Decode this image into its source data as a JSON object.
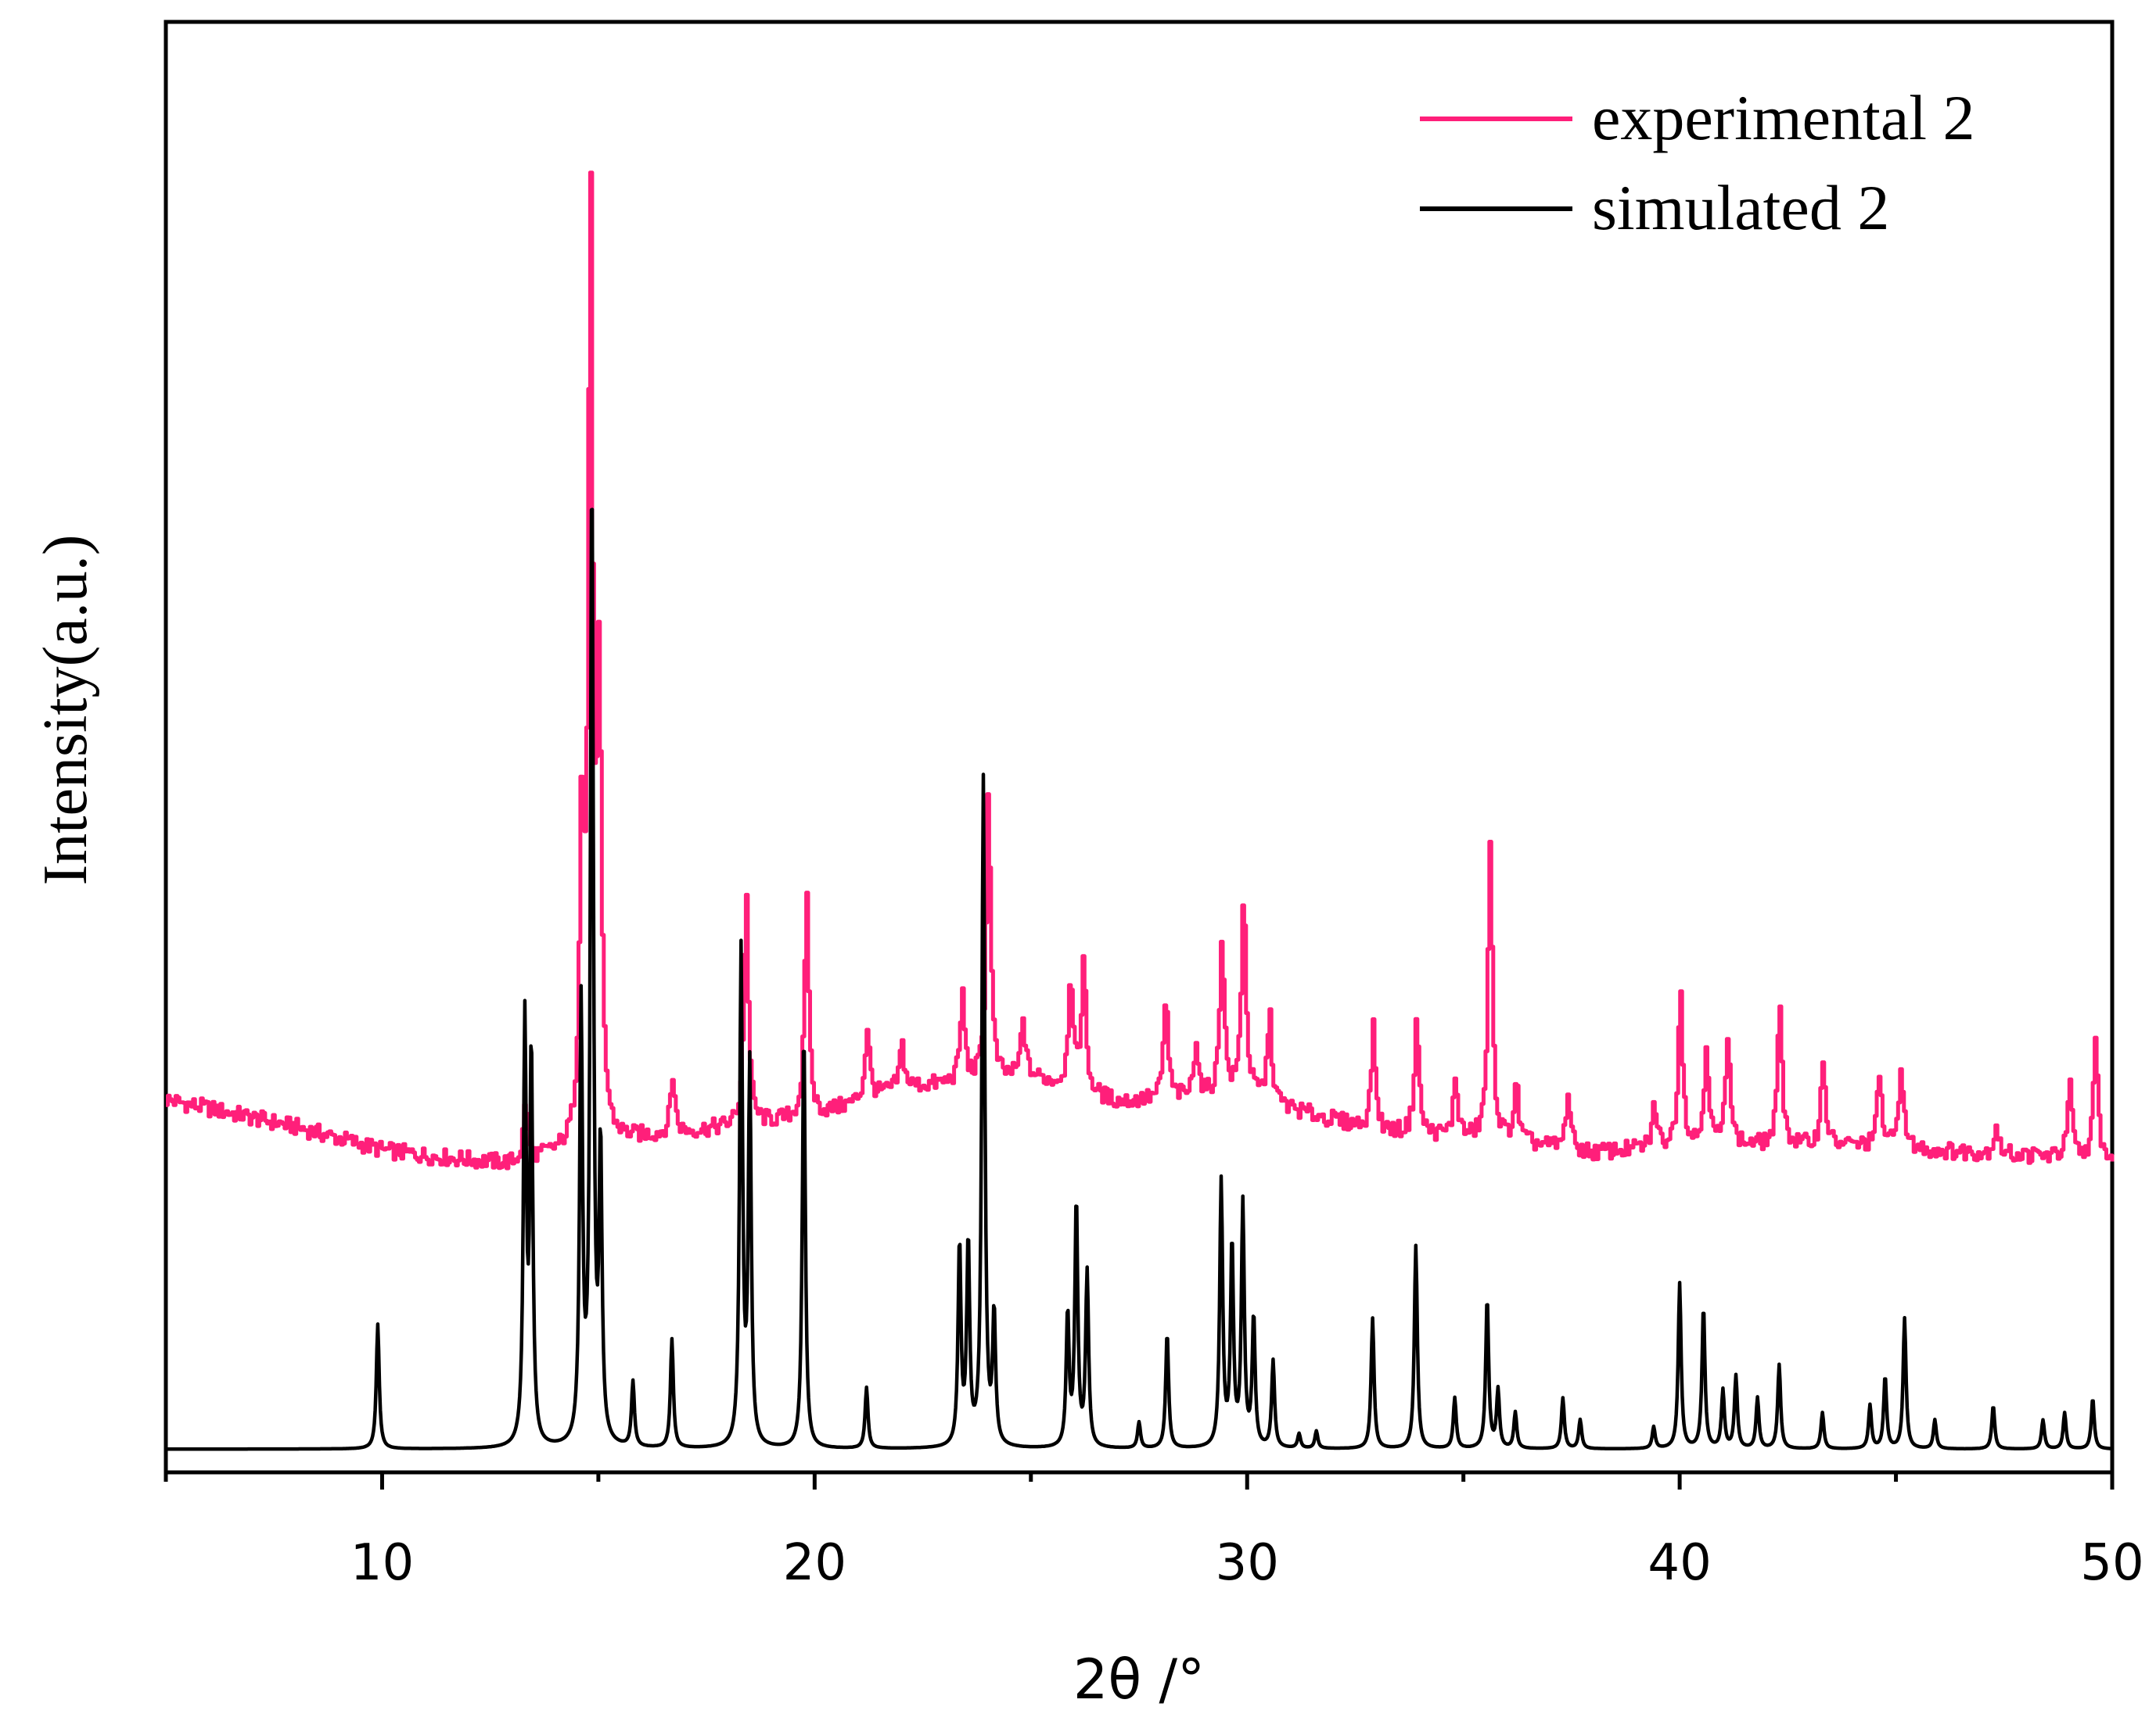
{
  "chart_data": {
    "type": "line",
    "title": "",
    "xlabel": "2θ /°",
    "ylabel": "Intensity(a.u.)",
    "xlim": [
      5,
      50
    ],
    "ylim": [
      0,
      1
    ],
    "x_ticks": [
      10,
      20,
      30,
      40,
      50
    ],
    "x_tick_labels": [
      "10",
      "20",
      "30",
      "40",
      "50"
    ],
    "y_ticks_shown": false,
    "grid": false,
    "legend_position": "top-right",
    "series": [
      {
        "name": "experimental 2",
        "color": "#ff1f7a",
        "baseline": [
          [
            5,
            0.257
          ],
          [
            8,
            0.238
          ],
          [
            10,
            0.222
          ],
          [
            11,
            0.218
          ],
          [
            13,
            0.212
          ],
          [
            16,
            0.23
          ],
          [
            20,
            0.245
          ],
          [
            22,
            0.265
          ],
          [
            25,
            0.272
          ],
          [
            27,
            0.255
          ],
          [
            30,
            0.26
          ],
          [
            31,
            0.25
          ],
          [
            33,
            0.235
          ],
          [
            36,
            0.228
          ],
          [
            38,
            0.22
          ],
          [
            40,
            0.225
          ],
          [
            44,
            0.225
          ],
          [
            47,
            0.22
          ],
          [
            50,
            0.215
          ]
        ],
        "peaks": [
          [
            13.3,
            0.04
          ],
          [
            14.6,
            0.22
          ],
          [
            14.8,
            0.64
          ],
          [
            15.0,
            0.3
          ],
          [
            16.7,
            0.04
          ],
          [
            18.4,
            0.16
          ],
          [
            19.8,
            0.15
          ],
          [
            21.2,
            0.05
          ],
          [
            22.0,
            0.03
          ],
          [
            23.4,
            0.06
          ],
          [
            24.0,
            0.2
          ],
          [
            24.8,
            0.04
          ],
          [
            25.9,
            0.08
          ],
          [
            26.2,
            0.09
          ],
          [
            28.1,
            0.07
          ],
          [
            28.8,
            0.04
          ],
          [
            29.4,
            0.11
          ],
          [
            29.9,
            0.14
          ],
          [
            30.5,
            0.06
          ],
          [
            32.9,
            0.07
          ],
          [
            33.9,
            0.08
          ],
          [
            34.8,
            0.04
          ],
          [
            35.6,
            0.2
          ],
          [
            36.2,
            0.04
          ],
          [
            37.4,
            0.04
          ],
          [
            39.4,
            0.03
          ],
          [
            40.0,
            0.11
          ],
          [
            40.6,
            0.07
          ],
          [
            41.1,
            0.08
          ],
          [
            42.3,
            0.1
          ],
          [
            43.3,
            0.06
          ],
          [
            44.6,
            0.05
          ],
          [
            45.1,
            0.06
          ],
          [
            47.3,
            0.02
          ],
          [
            49.0,
            0.05
          ],
          [
            49.6,
            0.08
          ]
        ]
      },
      {
        "name": "simulated 2",
        "color": "#000000",
        "baseline": [
          [
            5,
            0.016
          ],
          [
            50,
            0.016
          ]
        ],
        "peaks": [
          [
            9.9,
            0.086
          ],
          [
            13.3,
            0.29
          ],
          [
            13.45,
            0.27
          ],
          [
            14.6,
            0.3
          ],
          [
            14.85,
            0.67
          ],
          [
            15.05,
            0.2
          ],
          [
            15.8,
            0.045
          ],
          [
            16.7,
            0.075
          ],
          [
            18.3,
            0.34
          ],
          [
            18.5,
            0.26
          ],
          [
            19.75,
            0.29
          ],
          [
            21.2,
            0.042
          ],
          [
            23.35,
            0.14
          ],
          [
            23.55,
            0.14
          ],
          [
            23.9,
            0.46
          ],
          [
            24.15,
            0.09
          ],
          [
            25.85,
            0.092
          ],
          [
            26.05,
            0.17
          ],
          [
            26.3,
            0.12
          ],
          [
            27.5,
            0.018
          ],
          [
            28.15,
            0.08
          ],
          [
            29.4,
            0.183
          ],
          [
            29.65,
            0.14
          ],
          [
            29.9,
            0.167
          ],
          [
            30.15,
            0.09
          ],
          [
            30.6,
            0.06
          ],
          [
            31.2,
            0.01
          ],
          [
            31.6,
            0.012
          ],
          [
            32.9,
            0.09
          ],
          [
            33.9,
            0.14
          ],
          [
            34.8,
            0.035
          ],
          [
            35.55,
            0.104
          ],
          [
            35.8,
            0.04
          ],
          [
            36.2,
            0.025
          ],
          [
            37.3,
            0.035
          ],
          [
            37.7,
            0.02
          ],
          [
            39.4,
            0.015
          ],
          [
            40.0,
            0.114
          ],
          [
            40.55,
            0.098
          ],
          [
            41.0,
            0.04
          ],
          [
            41.3,
            0.05
          ],
          [
            41.8,
            0.035
          ],
          [
            42.3,
            0.058
          ],
          [
            43.3,
            0.025
          ],
          [
            44.4,
            0.03
          ],
          [
            44.75,
            0.05
          ],
          [
            45.2,
            0.09
          ],
          [
            45.9,
            0.02
          ],
          [
            47.25,
            0.03
          ],
          [
            48.4,
            0.02
          ],
          [
            48.9,
            0.025
          ],
          [
            49.55,
            0.035
          ]
        ]
      }
    ]
  }
}
